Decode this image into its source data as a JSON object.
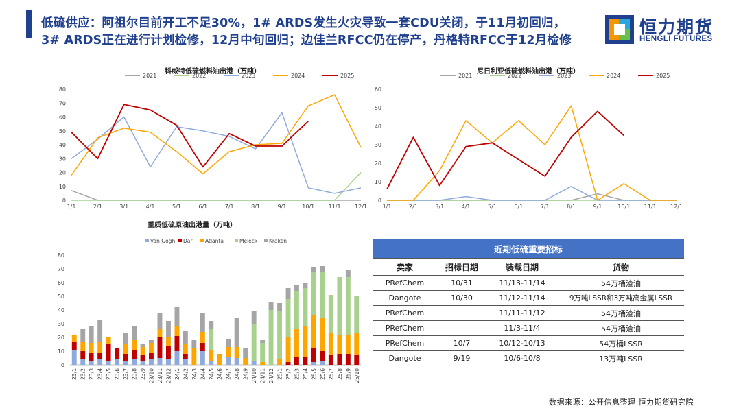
{
  "headline": {
    "line1": "低硫供应：阿祖尔目前开工不足30%，1# ARDS发生火灾导致一套CDU关闭，于11月初回归，",
    "line2": "3# ARDS正在进行计划检修，12月中旬回归；边佳兰RFCC仍在停产，丹格特RFCC于12月检修"
  },
  "logo": {
    "cn": "恒力期货",
    "en": "HENGLI FUTURES"
  },
  "colors": {
    "y2021": "#a5a5a5",
    "y2022": "#a9d18e",
    "y2023": "#8faadc",
    "y2024": "#ffa500",
    "y2025": "#c00000",
    "vangogh": "#8faadc",
    "dar": "#c00000",
    "atlanta": "#ffa500",
    "meleck": "#a9d18e",
    "kraken": "#a5a5a5",
    "brand": "#1f3f8f",
    "table_header": "#4472c4"
  },
  "chart_data": [
    {
      "type": "line",
      "title": "科威特低硫燃料油出港（万吨）",
      "x": [
        "1/1",
        "2/1",
        "3/1",
        "4/1",
        "5/1",
        "6/1",
        "7/1",
        "8/1",
        "9/1",
        "10/1",
        "11/1",
        "12/1"
      ],
      "ylim": [
        0,
        80
      ],
      "yticks": [
        "0",
        "10",
        "20",
        "30",
        "40",
        "50",
        "60",
        "70",
        "80"
      ],
      "grid": false,
      "legend": "top",
      "series": [
        {
          "name": "2021",
          "values": [
            7,
            0,
            0,
            0,
            0,
            0,
            0,
            0,
            0,
            0,
            0,
            0
          ]
        },
        {
          "name": "2022",
          "values": [
            0,
            0,
            0,
            0,
            0,
            0,
            0,
            0,
            0,
            0,
            0,
            20
          ]
        },
        {
          "name": "2023",
          "values": [
            30,
            44,
            60,
            24,
            53,
            50,
            46,
            37,
            63,
            9,
            5,
            9
          ]
        },
        {
          "name": "2024",
          "values": [
            18,
            45,
            52,
            49,
            35,
            19,
            35,
            40,
            41,
            68,
            76,
            38
          ]
        },
        {
          "name": "2025",
          "values": [
            49,
            30,
            69,
            65,
            54,
            24,
            48,
            39,
            39,
            57,
            null,
            null
          ]
        }
      ]
    },
    {
      "type": "line",
      "title": "尼日利亚低硫燃料油出港（万吨）",
      "x": [
        "1/1",
        "2/1",
        "3/1",
        "4/1",
        "5/1",
        "6/1",
        "7/1",
        "8/1",
        "9/1",
        "10/1",
        "11/1",
        "12/1"
      ],
      "ylim": [
        0,
        60
      ],
      "yticks": [
        "0",
        "10",
        "20",
        "30",
        "40",
        "50",
        "60"
      ],
      "grid": false,
      "legend": "top",
      "series": [
        {
          "name": "2021",
          "values": [
            0,
            0,
            0,
            0,
            0,
            0,
            0,
            0,
            3.5,
            0,
            0,
            0
          ]
        },
        {
          "name": "2022",
          "values": [
            0,
            0,
            0,
            0,
            0,
            0,
            0,
            0,
            0,
            0,
            0,
            0
          ]
        },
        {
          "name": "2023",
          "values": [
            0,
            0,
            0,
            2,
            0,
            0,
            0,
            7.5,
            0,
            0,
            0,
            0
          ]
        },
        {
          "name": "2024",
          "values": [
            0,
            0,
            16,
            43,
            31,
            43,
            30,
            51,
            0,
            9,
            0,
            0
          ]
        },
        {
          "name": "2025",
          "values": [
            6,
            34,
            8,
            29,
            31,
            22,
            13,
            34,
            48,
            35,
            null,
            null
          ]
        }
      ]
    },
    {
      "type": "bar",
      "stacked": true,
      "title": "重质低硫原油出港量（万吨）",
      "categories": [
        "23/1",
        "23/2",
        "23/3",
        "23/4",
        "23/5",
        "23/6",
        "23/7",
        "23/8",
        "23/9",
        "23/10",
        "23/11",
        "23/12",
        "24/1",
        "24/2",
        "24/3",
        "24/4",
        "24/5",
        "24/6",
        "24/7",
        "24/8",
        "24/9",
        "24/10",
        "24/11",
        "24/12",
        "25/1",
        "25/2",
        "25/3",
        "25/4",
        "25/5",
        "25/6",
        "25/7",
        "25/8",
        "25/9",
        "25/10"
      ],
      "ylim": [
        0,
        80
      ],
      "yticks": [
        "0",
        "10",
        "20",
        "30",
        "40",
        "50",
        "60",
        "70",
        "80"
      ],
      "grid": false,
      "legend": "top",
      "series": [
        {
          "name": "Van Gogh",
          "values": [
            11,
            4,
            3,
            4,
            3,
            4,
            3,
            4,
            3,
            4,
            5,
            4,
            10,
            4,
            0,
            10,
            3,
            0,
            6,
            5,
            0,
            3,
            0,
            0,
            0,
            0,
            0,
            0,
            2,
            3,
            0,
            0,
            0,
            0
          ]
        },
        {
          "name": "Dar",
          "values": [
            6,
            6,
            6,
            5,
            12,
            8,
            5,
            7,
            4,
            5,
            15,
            10,
            11,
            4,
            0,
            6,
            0,
            0,
            0,
            0,
            0,
            0,
            0,
            0,
            0,
            2,
            6,
            6,
            10,
            7,
            7,
            8,
            8,
            7
          ]
        },
        {
          "name": "Atlanta",
          "values": [
            5,
            7,
            7,
            8,
            5,
            0,
            7,
            7,
            6,
            7,
            6,
            6,
            7,
            7,
            12,
            8,
            8,
            8,
            7,
            8,
            5,
            0,
            2,
            0,
            4,
            18,
            20,
            22,
            24,
            24,
            16,
            14,
            14,
            16
          ]
        },
        {
          "name": "Meleck",
          "values": [
            0,
            0,
            0,
            0,
            0,
            0,
            0,
            0,
            0,
            0,
            0,
            0,
            0,
            0,
            0,
            0,
            15,
            0,
            0,
            0,
            0,
            27,
            14,
            40,
            35,
            28,
            28,
            28,
            32,
            34,
            28,
            42,
            42,
            27
          ]
        },
        {
          "name": "Kraken",
          "values": [
            0,
            9,
            12,
            16,
            0,
            0,
            8,
            10,
            2,
            2,
            12,
            12,
            14,
            10,
            6,
            14,
            6,
            0,
            6,
            21,
            7,
            9,
            2,
            6,
            6,
            8,
            4,
            4,
            3,
            4,
            0,
            0,
            5,
            0
          ]
        }
      ]
    }
  ],
  "table": {
    "caption": "近期低硫重要招标",
    "headers": [
      "卖家",
      "招标日期",
      "装载日期",
      "货物"
    ],
    "rows": [
      [
        "PRefChem",
        "10/31",
        "11/13-11/14",
        "54万桶渣油"
      ],
      [
        "Dangote",
        "10/30",
        "11/12-11/14",
        "9万吨LSSR和3万吨高金属LSSR"
      ],
      [
        "PRefChem",
        "",
        "11/11-11/12",
        "54万桶渣油"
      ],
      [
        "PRefChem",
        "",
        "11/3-11/4",
        "54万桶渣油"
      ],
      [
        "PRefChem",
        "10/7",
        "10/12-10/13",
        "54万桶LSSR"
      ],
      [
        "Dangote",
        "9/19",
        "10/6-10/8",
        "13万吨LSSR"
      ]
    ]
  },
  "source": "数据来源：公开信息整理  恒力期货研究院"
}
